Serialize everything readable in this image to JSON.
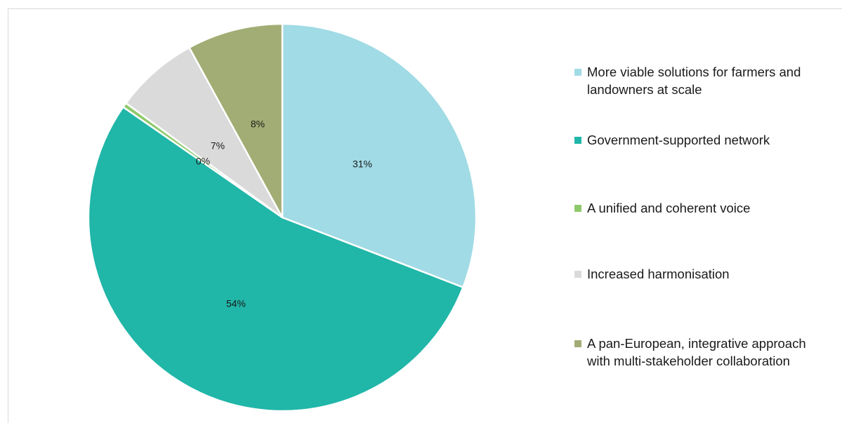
{
  "chart_data": {
    "type": "pie",
    "start_angle_deg": 0,
    "direction": "clockwise",
    "slices": [
      {
        "label": "More viable solutions for farmers and landowners at scale",
        "value": 31,
        "data_label": "31%",
        "color": "#a1dbe5"
      },
      {
        "label": "Government-supported network",
        "value": 54,
        "data_label": "54%",
        "color": "#20b6a8"
      },
      {
        "label": "A unified and coherent voice",
        "value": 0.4,
        "data_label": "0%",
        "color": "#8ec96b"
      },
      {
        "label": "Increased harmonisation",
        "value": 7,
        "data_label": "7%",
        "color": "#dadada"
      },
      {
        "label": "A pan-European, integrative approach with multi-stakeholder collaboration",
        "value": 8,
        "data_label": "8%",
        "color": "#a1ad74"
      }
    ],
    "legend": {
      "position": "right",
      "items": [
        {
          "lines": [
            "More viable solutions for farmers and",
            "landowners at scale"
          ],
          "color": "#a1dbe5"
        },
        {
          "lines": [
            "Government-supported network"
          ],
          "color": "#20b6a8"
        },
        {
          "lines": [
            "A unified and coherent voice"
          ],
          "color": "#8ec96b"
        },
        {
          "lines": [
            "Increased harmonisation"
          ],
          "color": "#dadada"
        },
        {
          "lines": [
            "A pan-European, integrative approach",
            "with multi-stakeholder collaboration"
          ],
          "color": "#a1ad74"
        }
      ]
    }
  }
}
